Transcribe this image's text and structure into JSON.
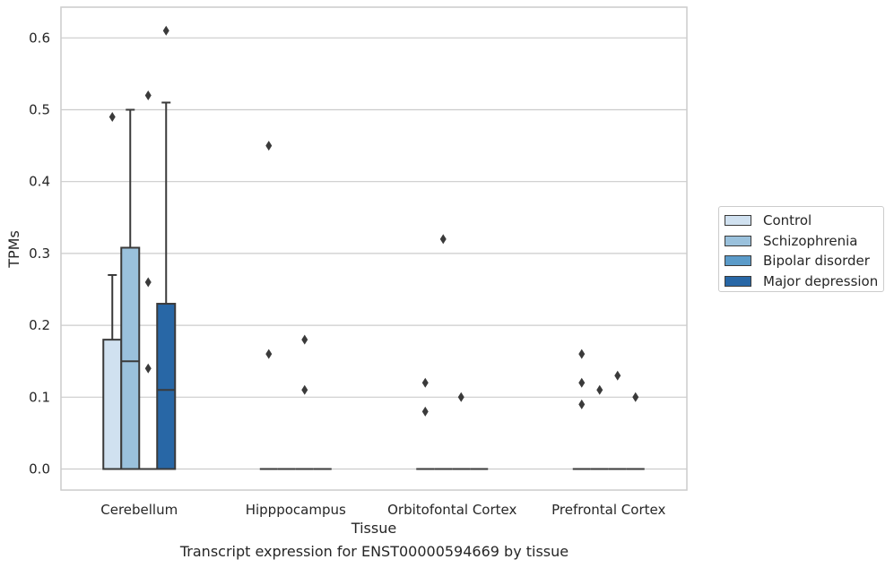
{
  "chart_data": {
    "type": "box",
    "xlabel": "Tissue",
    "ylabel": "TPMs",
    "ylim": [
      -0.03,
      0.645
    ],
    "yticks": [
      0.0,
      0.1,
      0.2,
      0.3,
      0.4,
      0.5,
      0.6
    ],
    "ytick_labels": [
      "0.0",
      "0.1",
      "0.2",
      "0.3",
      "0.4",
      "0.5",
      "0.6"
    ],
    "grid": "horizontal",
    "legend_position": "right",
    "categories": [
      "Cerebellum",
      "Hipppocampus",
      "Orbitofontal Cortex",
      "Prefrontal Cortex"
    ],
    "series": [
      {
        "name": "Control",
        "color": "#d0e1f0",
        "boxes": [
          {
            "q1": 0.0,
            "median": 0.0,
            "q3": 0.18,
            "whisker_low": 0.0,
            "whisker_high": 0.27,
            "outliers": [
              0.49
            ]
          },
          {
            "q1": 0.0,
            "median": 0.0,
            "q3": 0.0,
            "whisker_low": 0.0,
            "whisker_high": 0.0,
            "outliers": [
              0.45,
              0.16
            ]
          },
          {
            "q1": 0.0,
            "median": 0.0,
            "q3": 0.0,
            "whisker_low": 0.0,
            "whisker_high": 0.0,
            "outliers": [
              0.12,
              0.08
            ]
          },
          {
            "q1": 0.0,
            "median": 0.0,
            "q3": 0.0,
            "whisker_low": 0.0,
            "whisker_high": 0.0,
            "outliers": [
              0.16,
              0.12,
              0.09
            ]
          }
        ]
      },
      {
        "name": "Schizophrenia",
        "color": "#9ac1dc",
        "boxes": [
          {
            "q1": 0.0,
            "median": 0.15,
            "q3": 0.308,
            "whisker_low": 0.0,
            "whisker_high": 0.5,
            "outliers": []
          },
          {
            "q1": 0.0,
            "median": 0.0,
            "q3": 0.0,
            "whisker_low": 0.0,
            "whisker_high": 0.0,
            "outliers": []
          },
          {
            "q1": 0.0,
            "median": 0.0,
            "q3": 0.0,
            "whisker_low": 0.0,
            "whisker_high": 0.0,
            "outliers": [
              0.32
            ]
          },
          {
            "q1": 0.0,
            "median": 0.0,
            "q3": 0.0,
            "whisker_low": 0.0,
            "whisker_high": 0.0,
            "outliers": [
              0.11
            ]
          }
        ]
      },
      {
        "name": "Bipolar disorder",
        "color": "#5b9bc9",
        "boxes": [
          {
            "q1": 0.0,
            "median": 0.0,
            "q3": 0.0,
            "whisker_low": 0.0,
            "whisker_high": 0.0,
            "outliers": [
              0.52,
              0.26,
              0.14
            ]
          },
          {
            "q1": 0.0,
            "median": 0.0,
            "q3": 0.0,
            "whisker_low": 0.0,
            "whisker_high": 0.0,
            "outliers": [
              0.18,
              0.11
            ]
          },
          {
            "q1": 0.0,
            "median": 0.0,
            "q3": 0.0,
            "whisker_low": 0.0,
            "whisker_high": 0.0,
            "outliers": [
              0.1
            ]
          },
          {
            "q1": 0.0,
            "median": 0.0,
            "q3": 0.0,
            "whisker_low": 0.0,
            "whisker_high": 0.0,
            "outliers": [
              0.13
            ]
          }
        ]
      },
      {
        "name": "Major depression",
        "color": "#2867a6",
        "boxes": [
          {
            "q1": 0.0,
            "median": 0.11,
            "q3": 0.23,
            "whisker_low": 0.0,
            "whisker_high": 0.51,
            "outliers": [
              0.61
            ]
          },
          {
            "q1": 0.0,
            "median": 0.0,
            "q3": 0.0,
            "whisker_low": 0.0,
            "whisker_high": 0.0,
            "outliers": []
          },
          {
            "q1": 0.0,
            "median": 0.0,
            "q3": 0.0,
            "whisker_low": 0.0,
            "whisker_high": 0.0,
            "outliers": []
          },
          {
            "q1": 0.0,
            "median": 0.0,
            "q3": 0.0,
            "whisker_low": 0.0,
            "whisker_high": 0.0,
            "outliers": [
              0.1
            ]
          }
        ]
      }
    ]
  },
  "caption": "Transcript expression for ENST00000594669 by tissue",
  "colors": {
    "grid": "#cccccc",
    "box_edge": "#3a3a3a",
    "frame": "#cccccc"
  }
}
